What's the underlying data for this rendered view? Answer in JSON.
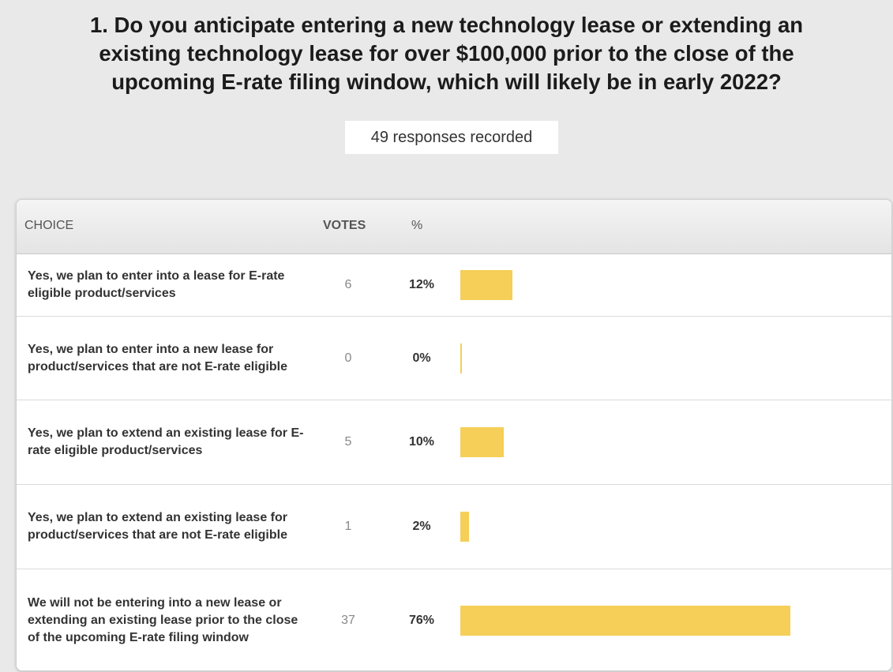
{
  "question": {
    "line1": "1. Do you anticipate entering a new technology lease or extending an",
    "line2": "existing technology lease for over $100,000 prior to the close of the",
    "line3": "upcoming E-rate filing window, which will likely be in early 2022?"
  },
  "responses_label": "49 responses recorded",
  "table": {
    "headers": {
      "choice": "CHOICE",
      "votes": "VOTES",
      "percent": "%"
    },
    "rows": [
      {
        "choice": "Yes, we plan to enter into a lease for E-rate eligible product/services",
        "votes": "6",
        "percent": "12%",
        "value": 12
      },
      {
        "choice": "Yes, we plan to enter into a new lease for product/services that are not E-rate eligible",
        "votes": "0",
        "percent": "0%",
        "value": 0
      },
      {
        "choice": "Yes, we plan to extend an existing lease for E-rate eligible product/services",
        "votes": "5",
        "percent": "10%",
        "value": 10
      },
      {
        "choice": "Yes, we plan to extend an existing lease for product/services that are not E-rate eligible",
        "votes": "1",
        "percent": "2%",
        "value": 2
      },
      {
        "choice": "We will not be entering into a new lease or extending an existing lease prior to the close of the upcoming E-rate filing window",
        "votes": "37",
        "percent": "76%",
        "value": 76
      }
    ]
  },
  "colors": {
    "bar": "#f5cf57",
    "background": "#e9e9e9"
  }
}
